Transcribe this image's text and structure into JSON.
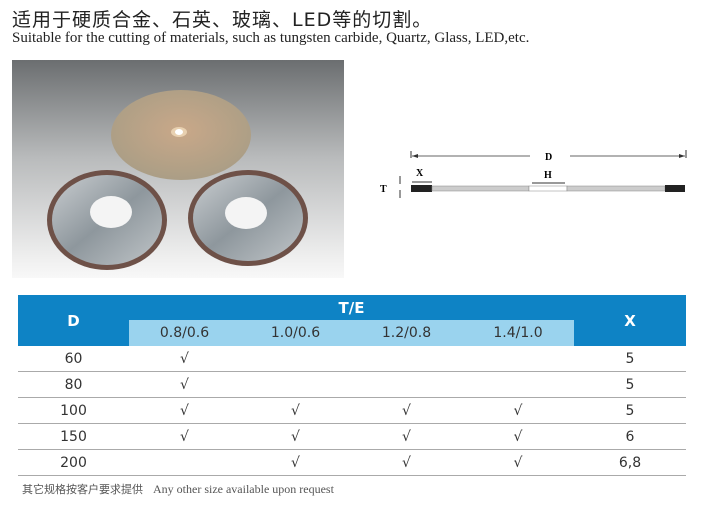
{
  "header": {
    "title_cn": "适用于硬质合金、石英、玻璃、LED等的切割。",
    "title_en": "Suitable for the cutting of materials, such as tungsten carbide, Quartz, Glass, LED,etc."
  },
  "diagram": {
    "label_d": "D",
    "label_x": "X",
    "label_h": "H",
    "label_t": "T"
  },
  "table": {
    "col_d": "D",
    "col_te": "T/E",
    "col_x": "X",
    "te_headers": [
      "0.8/0.6",
      "1.0/0.6",
      "1.2/0.8",
      "1.4/1.0"
    ],
    "rows": [
      {
        "d": "60",
        "te": [
          "√",
          "",
          "",
          ""
        ],
        "x": "5"
      },
      {
        "d": "80",
        "te": [
          "√",
          "",
          "",
          ""
        ],
        "x": "5"
      },
      {
        "d": "100",
        "te": [
          "√",
          "√",
          "√",
          "√"
        ],
        "x": "5"
      },
      {
        "d": "150",
        "te": [
          "√",
          "√",
          "√",
          "√"
        ],
        "x": "6"
      },
      {
        "d": "200",
        "te": [
          "",
          "√",
          "√",
          "√"
        ],
        "x": "6,8"
      }
    ]
  },
  "note": {
    "cn": "其它规格按客户要求提供",
    "en": "Any other size available upon request"
  },
  "colors": {
    "header_blue": "#0e83c5",
    "subheader_blue": "#9ad3ee"
  }
}
